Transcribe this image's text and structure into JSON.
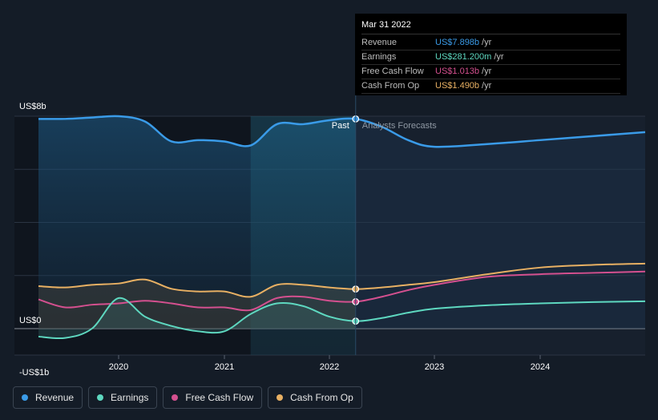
{
  "chart_data": {
    "type": "line",
    "y_unit_labels": {
      "top": "US$8b",
      "zero": "US$0",
      "bottom": "-US$1b"
    },
    "ylim": [
      -1,
      8
    ],
    "xlim": [
      2019.25,
      2025.0
    ],
    "x_ticks": [
      {
        "value": 2020.0,
        "label": "2020"
      },
      {
        "value": 2021.0,
        "label": "2021"
      },
      {
        "value": 2022.0,
        "label": "2022"
      },
      {
        "value": 2023.0,
        "label": "2023"
      },
      {
        "value": 2024.0,
        "label": "2024"
      }
    ],
    "past_label": "Past",
    "forecast_label": "Analysts Forecasts",
    "past_end_x": 2022.25,
    "highlight_start_x": 2021.25,
    "series": [
      {
        "name": "Revenue",
        "color": "#3a9be8",
        "points": [
          [
            2019.25,
            7.9
          ],
          [
            2019.5,
            7.9
          ],
          [
            2019.75,
            7.95
          ],
          [
            2020.0,
            8.0
          ],
          [
            2020.25,
            7.8
          ],
          [
            2020.5,
            7.05
          ],
          [
            2020.75,
            7.1
          ],
          [
            2021.0,
            7.05
          ],
          [
            2021.25,
            6.9
          ],
          [
            2021.5,
            7.7
          ],
          [
            2021.75,
            7.7
          ],
          [
            2022.0,
            7.85
          ],
          [
            2022.25,
            7.898
          ],
          [
            2022.5,
            7.6
          ],
          [
            2022.75,
            7.1
          ],
          [
            2023.0,
            6.85
          ],
          [
            2023.5,
            6.95
          ],
          [
            2024.0,
            7.1
          ],
          [
            2024.5,
            7.25
          ],
          [
            2025.0,
            7.4
          ]
        ]
      },
      {
        "name": "Earnings",
        "color": "#5ed8c0",
        "points": [
          [
            2019.25,
            -0.3
          ],
          [
            2019.5,
            -0.35
          ],
          [
            2019.75,
            0.0
          ],
          [
            2020.0,
            1.15
          ],
          [
            2020.25,
            0.45
          ],
          [
            2020.5,
            0.1
          ],
          [
            2020.75,
            -0.1
          ],
          [
            2021.0,
            -0.1
          ],
          [
            2021.25,
            0.55
          ],
          [
            2021.5,
            0.95
          ],
          [
            2021.75,
            0.85
          ],
          [
            2022.0,
            0.45
          ],
          [
            2022.25,
            0.281
          ],
          [
            2022.5,
            0.4
          ],
          [
            2022.75,
            0.6
          ],
          [
            2023.0,
            0.75
          ],
          [
            2023.5,
            0.88
          ],
          [
            2024.0,
            0.95
          ],
          [
            2024.5,
            1.0
          ],
          [
            2025.0,
            1.03
          ]
        ]
      },
      {
        "name": "Free Cash Flow",
        "color": "#d4508f",
        "points": [
          [
            2019.25,
            1.1
          ],
          [
            2019.5,
            0.8
          ],
          [
            2019.75,
            0.9
          ],
          [
            2020.0,
            0.95
          ],
          [
            2020.25,
            1.05
          ],
          [
            2020.5,
            0.95
          ],
          [
            2020.75,
            0.8
          ],
          [
            2021.0,
            0.8
          ],
          [
            2021.25,
            0.7
          ],
          [
            2021.5,
            1.15
          ],
          [
            2021.75,
            1.2
          ],
          [
            2022.0,
            1.05
          ],
          [
            2022.25,
            1.013
          ],
          [
            2022.5,
            1.2
          ],
          [
            2022.75,
            1.45
          ],
          [
            2023.0,
            1.65
          ],
          [
            2023.5,
            1.95
          ],
          [
            2024.0,
            2.05
          ],
          [
            2024.5,
            2.1
          ],
          [
            2025.0,
            2.15
          ]
        ]
      },
      {
        "name": "Cash From Op",
        "color": "#e8b063",
        "points": [
          [
            2019.25,
            1.6
          ],
          [
            2019.5,
            1.55
          ],
          [
            2019.75,
            1.65
          ],
          [
            2020.0,
            1.7
          ],
          [
            2020.25,
            1.85
          ],
          [
            2020.5,
            1.5
          ],
          [
            2020.75,
            1.4
          ],
          [
            2021.0,
            1.4
          ],
          [
            2021.25,
            1.2
          ],
          [
            2021.5,
            1.65
          ],
          [
            2021.75,
            1.65
          ],
          [
            2022.0,
            1.55
          ],
          [
            2022.25,
            1.49
          ],
          [
            2022.5,
            1.55
          ],
          [
            2022.75,
            1.65
          ],
          [
            2023.0,
            1.75
          ],
          [
            2023.5,
            2.05
          ],
          [
            2024.0,
            2.3
          ],
          [
            2024.5,
            2.4
          ],
          [
            2025.0,
            2.45
          ]
        ]
      }
    ]
  },
  "tooltip": {
    "date": "Mar 31 2022",
    "rows": [
      {
        "label": "Revenue",
        "value": "US$7.898b",
        "unit": "/yr",
        "color": "#3a9be8"
      },
      {
        "label": "Earnings",
        "value": "US$281.200m",
        "unit": "/yr",
        "color": "#5ed8c0"
      },
      {
        "label": "Free Cash Flow",
        "value": "US$1.013b",
        "unit": "/yr",
        "color": "#d4508f"
      },
      {
        "label": "Cash From Op",
        "value": "US$1.490b",
        "unit": "/yr",
        "color": "#e8b063"
      }
    ]
  },
  "legend": [
    {
      "label": "Revenue",
      "color": "#3a9be8"
    },
    {
      "label": "Earnings",
      "color": "#5ed8c0"
    },
    {
      "label": "Free Cash Flow",
      "color": "#d4508f"
    },
    {
      "label": "Cash From Op",
      "color": "#e8b063"
    }
  ]
}
